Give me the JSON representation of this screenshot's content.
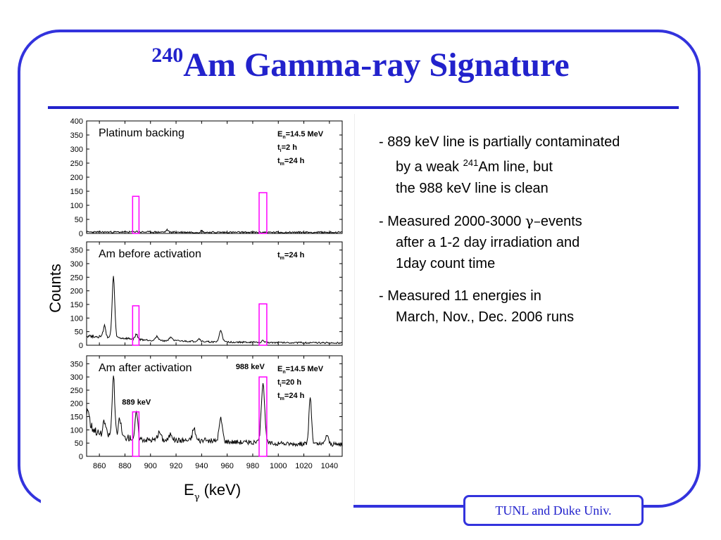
{
  "slide": {
    "title_sup": "240",
    "title_main": "Am Gamma-ray Signature",
    "footer": "TUNL and Duke Univ.",
    "bullets": [
      {
        "line1": "- 889 keV line is partially contaminated",
        "line2_pre": "by a weak ",
        "line2_sup": "241",
        "line2_post": "Am line, but",
        "line3": "the 988 keV line is clean"
      },
      {
        "line1_pre": "- Measured 2000-3000 ",
        "line1_greek": "γ–",
        "line1_post": "events",
        "line2": "after a 1-2 day irradiation and",
        "line3": "1day count time"
      },
      {
        "line1": "- Measured 11 energies in",
        "line2": "March, Nov., Dec. 2006 runs"
      }
    ],
    "colors": {
      "accent": "#2222cc",
      "frame": "#3333dd",
      "window": "#ff00ff"
    }
  },
  "chart_data": {
    "type": "line",
    "ylabel": "Counts",
    "xlabel_main": "E",
    "xlabel_sub": "γ",
    "xlabel_unit": "(keV)",
    "xlim": [
      850,
      1050
    ],
    "xticks": [
      860,
      880,
      900,
      920,
      940,
      960,
      980,
      1000,
      1020,
      1040
    ],
    "panels": [
      {
        "label": "Platinum backing",
        "ylim": [
          0,
          400
        ],
        "yticks": [
          0,
          50,
          100,
          150,
          200,
          250,
          300,
          350,
          400
        ],
        "annotations": [
          {
            "main": "E",
            "sub": "n",
            "rest": "=14.5 MeV"
          },
          {
            "main": "t",
            "sub": "i",
            "rest": "=2 h"
          },
          {
            "main": "t",
            "sub": "m",
            "rest": "=24 h"
          }
        ],
        "windows": [
          {
            "x0": 886,
            "x1": 891,
            "height": 132
          },
          {
            "x0": 985,
            "x1": 991,
            "height": 145
          }
        ],
        "peak_labels": [],
        "baseline": [
          [
            850,
            5
          ],
          [
            900,
            5
          ],
          [
            950,
            4
          ],
          [
            1000,
            4
          ],
          [
            1050,
            4
          ]
        ],
        "peaks": [
          [
            889,
            3,
            0.8
          ],
          [
            913,
            8,
            0.8
          ],
          [
            940,
            6,
            0.8
          ]
        ]
      },
      {
        "label": "Am before activation",
        "ylim": [
          0,
          380
        ],
        "yticks": [
          0,
          50,
          100,
          150,
          200,
          250,
          300,
          350
        ],
        "annotations": [
          {
            "main": "t",
            "sub": "m",
            "rest": "=24 h"
          }
        ],
        "windows": [
          {
            "x0": 886,
            "x1": 891,
            "height": 145
          },
          {
            "x0": 985,
            "x1": 991,
            "height": 152
          }
        ],
        "peak_labels": [],
        "baseline": [
          [
            850,
            35
          ],
          [
            870,
            28
          ],
          [
            900,
            18
          ],
          [
            950,
            12
          ],
          [
            1000,
            10
          ],
          [
            1050,
            8
          ]
        ],
        "peaks": [
          [
            864,
            40,
            1.0
          ],
          [
            871,
            225,
            1.0
          ],
          [
            889,
            18,
            1.0
          ],
          [
            905,
            15,
            1.2
          ],
          [
            916,
            15,
            1.2
          ],
          [
            938,
            10,
            1.2
          ],
          [
            955,
            42,
            1.2
          ],
          [
            988,
            6,
            1.0
          ]
        ]
      },
      {
        "label": "Am after activation",
        "ylim": [
          0,
          380
        ],
        "yticks": [
          0,
          50,
          100,
          150,
          200,
          250,
          300,
          350
        ],
        "annotations": [
          {
            "main": "E",
            "sub": "n",
            "rest": "=14.5 MeV"
          },
          {
            "main": "t",
            "sub": "i",
            "rest": "=20 h"
          },
          {
            "main": "t",
            "sub": "m",
            "rest": "=24 h"
          }
        ],
        "windows": [
          {
            "x0": 886,
            "x1": 891,
            "height": 168
          },
          {
            "x0": 985,
            "x1": 991,
            "height": 300
          }
        ],
        "peak_labels": [
          {
            "text": "889 keV",
            "x": 889,
            "y": 195
          },
          {
            "text": "988 keV",
            "x": 978,
            "y": 330
          }
        ],
        "baseline": [
          [
            850,
            130
          ],
          [
            860,
            85
          ],
          [
            880,
            72
          ],
          [
            900,
            62
          ],
          [
            940,
            60
          ],
          [
            1000,
            48
          ],
          [
            1050,
            45
          ]
        ],
        "peaks": [
          [
            851,
            60,
            1.0
          ],
          [
            864,
            50,
            1.0
          ],
          [
            871,
            225,
            1.0
          ],
          [
            876,
            70,
            1.0
          ],
          [
            889,
            100,
            1.0
          ],
          [
            907,
            30,
            1.2
          ],
          [
            916,
            25,
            1.2
          ],
          [
            934,
            45,
            1.2
          ],
          [
            955,
            85,
            1.3
          ],
          [
            988,
            230,
            1.3
          ],
          [
            1025,
            180,
            1.0
          ],
          [
            1038,
            35,
            1.2
          ]
        ]
      }
    ]
  }
}
